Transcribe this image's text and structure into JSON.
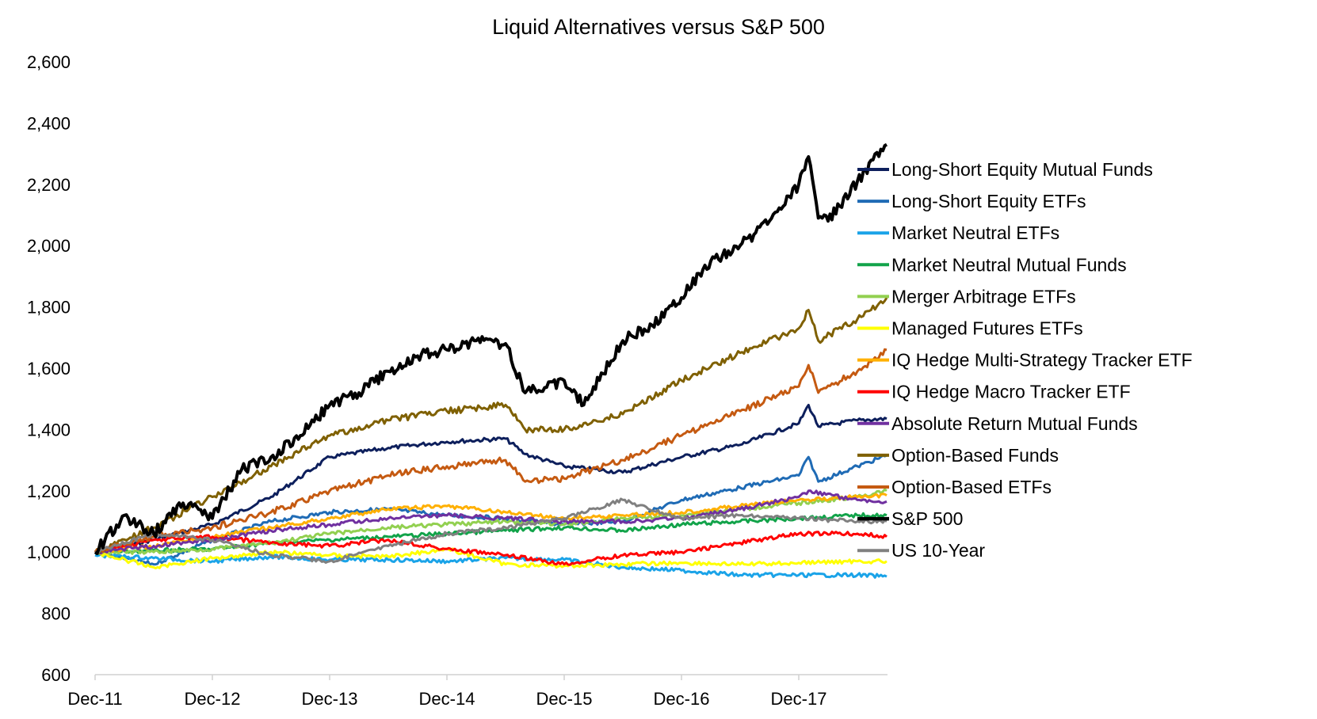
{
  "chart_data": {
    "type": "line",
    "title": "Liquid Alternatives versus S&P 500",
    "xlabel": "",
    "ylabel": "",
    "ylim": [
      600,
      2600
    ],
    "y_ticks": [
      "600",
      "800",
      "1,000",
      "1,200",
      "1,400",
      "1,600",
      "1,800",
      "2,000",
      "2,200",
      "2,400",
      "2,600"
    ],
    "x_ticks": [
      "Dec-11",
      "Dec-12",
      "Dec-13",
      "Dec-14",
      "Dec-15",
      "Dec-16",
      "Dec-17"
    ],
    "grid": false,
    "legend_position": "right",
    "series": [
      {
        "name": "Long-Short Equity Mutual Funds",
        "color": "#0d1f5c",
        "x": [
          "Dec-11",
          "Jun-12",
          "Dec-12",
          "Jun-13",
          "Dec-13",
          "Jun-14",
          "Dec-14",
          "Jun-15",
          "Aug-15",
          "Dec-15",
          "Jun-16",
          "Dec-16",
          "Jun-17",
          "Dec-17",
          "Jan-18",
          "Feb-18",
          "Jun-18",
          "Sep-18"
        ],
        "values": [
          1000,
          1040,
          1090,
          1180,
          1310,
          1340,
          1360,
          1370,
          1320,
          1280,
          1260,
          1310,
          1350,
          1420,
          1480,
          1410,
          1430,
          1435
        ]
      },
      {
        "name": "Long-Short Equity ETFs",
        "color": "#1f6bb5",
        "x": [
          "Dec-11",
          "Jun-12",
          "Dec-12",
          "Jun-13",
          "Dec-13",
          "Jun-14",
          "Dec-14",
          "Jun-15",
          "Dec-15",
          "Jun-16",
          "Dec-16",
          "Jun-17",
          "Dec-17",
          "Jan-18",
          "Feb-18",
          "Jun-18",
          "Sep-18"
        ],
        "values": [
          1000,
          960,
          1040,
          1100,
          1130,
          1140,
          1120,
          1110,
          1090,
          1100,
          1170,
          1210,
          1250,
          1310,
          1230,
          1280,
          1315
        ]
      },
      {
        "name": "Market Neutral ETFs",
        "color": "#1aa3e8",
        "x": [
          "Dec-11",
          "Jun-12",
          "Dec-12",
          "Jun-13",
          "Dec-13",
          "Jun-14",
          "Dec-14",
          "Jun-15",
          "Dec-15",
          "Jun-16",
          "Dec-16",
          "Jun-17",
          "Dec-17",
          "Jun-18",
          "Sep-18"
        ],
        "values": [
          990,
          980,
          970,
          985,
          975,
          975,
          970,
          980,
          975,
          950,
          940,
          925,
          925,
          925,
          920
        ]
      },
      {
        "name": "Market Neutral Mutual Funds",
        "color": "#12a34a",
        "x": [
          "Dec-11",
          "Jun-12",
          "Dec-12",
          "Jun-13",
          "Dec-13",
          "Jun-14",
          "Dec-14",
          "Jun-15",
          "Dec-15",
          "Jun-16",
          "Dec-16",
          "Jun-17",
          "Dec-17",
          "Jun-18",
          "Sep-18"
        ],
        "values": [
          1000,
          1005,
          1010,
          1030,
          1040,
          1050,
          1060,
          1070,
          1080,
          1070,
          1090,
          1100,
          1110,
          1120,
          1120
        ]
      },
      {
        "name": "Merger Arbitrage ETFs",
        "color": "#92d050",
        "x": [
          "Dec-11",
          "Jun-12",
          "Dec-12",
          "Jun-13",
          "Dec-13",
          "Jun-14",
          "Dec-14",
          "Jun-15",
          "Dec-15",
          "Jun-16",
          "Dec-16",
          "Jun-17",
          "Dec-17",
          "Jun-18",
          "Sep-18"
        ],
        "values": [
          1000,
          1000,
          1010,
          1030,
          1060,
          1080,
          1090,
          1100,
          1090,
          1110,
          1120,
          1140,
          1160,
          1180,
          1200
        ]
      },
      {
        "name": "Managed Futures ETFs",
        "color": "#ffff00",
        "x": [
          "Dec-11",
          "Jun-12",
          "Dec-12",
          "Jun-13",
          "Dec-13",
          "Jun-14",
          "Dec-14",
          "Jun-15",
          "Dec-15",
          "Jun-16",
          "Dec-16",
          "Jun-17",
          "Dec-17",
          "Jun-18",
          "Sep-18"
        ],
        "values": [
          1000,
          950,
          980,
          1000,
          990,
          985,
          1010,
          960,
          955,
          960,
          965,
          960,
          965,
          970,
          970
        ]
      },
      {
        "name": "IQ Hedge Multi-Strategy Tracker ETF",
        "color": "#ffb000",
        "x": [
          "Dec-11",
          "Jun-12",
          "Dec-12",
          "Jun-13",
          "Dec-13",
          "Jun-14",
          "Dec-14",
          "Jun-15",
          "Dec-15",
          "Jun-16",
          "Dec-16",
          "Jun-17",
          "Dec-17",
          "Jun-18",
          "Sep-18"
        ],
        "values": [
          1000,
          1020,
          1050,
          1080,
          1110,
          1140,
          1150,
          1130,
          1110,
          1120,
          1130,
          1150,
          1170,
          1180,
          1185
        ]
      },
      {
        "name": "IQ Hedge Macro Tracker ETF",
        "color": "#ff0000",
        "x": [
          "Dec-11",
          "Jun-12",
          "Dec-12",
          "Jun-13",
          "Dec-13",
          "Jun-14",
          "Dec-14",
          "Jun-15",
          "Dec-15",
          "Jun-16",
          "Dec-16",
          "Jun-17",
          "Dec-17",
          "Jun-18",
          "Sep-18"
        ],
        "values": [
          1000,
          1040,
          1050,
          1030,
          1020,
          1040,
          1010,
          990,
          960,
          990,
          1000,
          1030,
          1060,
          1060,
          1050
        ]
      },
      {
        "name": "Absolute Return Mutual Funds",
        "color": "#7030a0",
        "x": [
          "Dec-11",
          "Jun-12",
          "Dec-12",
          "Jun-13",
          "Dec-13",
          "Jun-14",
          "Dec-14",
          "Jun-15",
          "Dec-15",
          "Jun-16",
          "Dec-16",
          "Jun-17",
          "Dec-17",
          "Jan-18",
          "Jun-18",
          "Sep-18"
        ],
        "values": [
          1000,
          1020,
          1040,
          1070,
          1090,
          1110,
          1120,
          1110,
          1100,
          1100,
          1110,
          1140,
          1180,
          1200,
          1170,
          1165
        ]
      },
      {
        "name": "Option-Based Funds",
        "color": "#7f6000",
        "x": [
          "Dec-11",
          "Jun-12",
          "Dec-12",
          "Jun-13",
          "Dec-13",
          "Jun-14",
          "Dec-14",
          "Jun-15",
          "Aug-15",
          "Dec-15",
          "Jun-16",
          "Dec-16",
          "Jun-17",
          "Dec-17",
          "Jan-18",
          "Feb-18",
          "Jun-18",
          "Sep-18"
        ],
        "values": [
          1000,
          1080,
          1180,
          1280,
          1380,
          1430,
          1460,
          1480,
          1400,
          1400,
          1450,
          1560,
          1650,
          1730,
          1790,
          1690,
          1760,
          1830
        ]
      },
      {
        "name": "Option-Based ETFs",
        "color": "#c55a11",
        "x": [
          "Dec-11",
          "Jun-12",
          "Dec-12",
          "Jun-13",
          "Dec-13",
          "Jun-14",
          "Dec-14",
          "Jun-15",
          "Aug-15",
          "Dec-15",
          "Jun-16",
          "Dec-16",
          "Jun-17",
          "Dec-17",
          "Jan-18",
          "Feb-18",
          "Jun-18",
          "Sep-18"
        ],
        "values": [
          1000,
          1050,
          1080,
          1130,
          1200,
          1250,
          1280,
          1300,
          1230,
          1240,
          1300,
          1380,
          1460,
          1540,
          1610,
          1520,
          1590,
          1660
        ]
      },
      {
        "name": "S&P 500",
        "color": "#000000",
        "x": [
          "Dec-11",
          "Mar-12",
          "Jun-12",
          "Sep-12",
          "Dec-12",
          "Mar-13",
          "Jun-13",
          "Sep-13",
          "Dec-13",
          "Mar-14",
          "Jun-14",
          "Sep-14",
          "Dec-14",
          "Mar-15",
          "Jun-15",
          "Aug-15",
          "Dec-15",
          "Feb-16",
          "Jun-16",
          "Sep-16",
          "Dec-16",
          "Mar-17",
          "Jun-17",
          "Sep-17",
          "Dec-17",
          "Jan-18",
          "Feb-18",
          "Mar-18",
          "Jun-18",
          "Sep-18"
        ],
        "values": [
          1000,
          1120,
          1060,
          1160,
          1110,
          1270,
          1310,
          1380,
          1480,
          1520,
          1590,
          1640,
          1660,
          1690,
          1680,
          1520,
          1560,
          1480,
          1690,
          1740,
          1830,
          1950,
          2000,
          2080,
          2200,
          2290,
          2090,
          2080,
          2210,
          2330
        ]
      },
      {
        "name": "US 10-Year",
        "color": "#808080",
        "x": [
          "Dec-11",
          "Jun-12",
          "Dec-12",
          "Jun-13",
          "Dec-13",
          "Jun-14",
          "Dec-14",
          "Jun-15",
          "Dec-15",
          "Jun-16",
          "Dec-16",
          "Jun-17",
          "Dec-17",
          "Jun-18",
          "Sep-18"
        ],
        "values": [
          1000,
          1060,
          1040,
          990,
          970,
          1020,
          1060,
          1080,
          1110,
          1170,
          1110,
          1120,
          1110,
          1100,
          1100
        ]
      }
    ]
  }
}
